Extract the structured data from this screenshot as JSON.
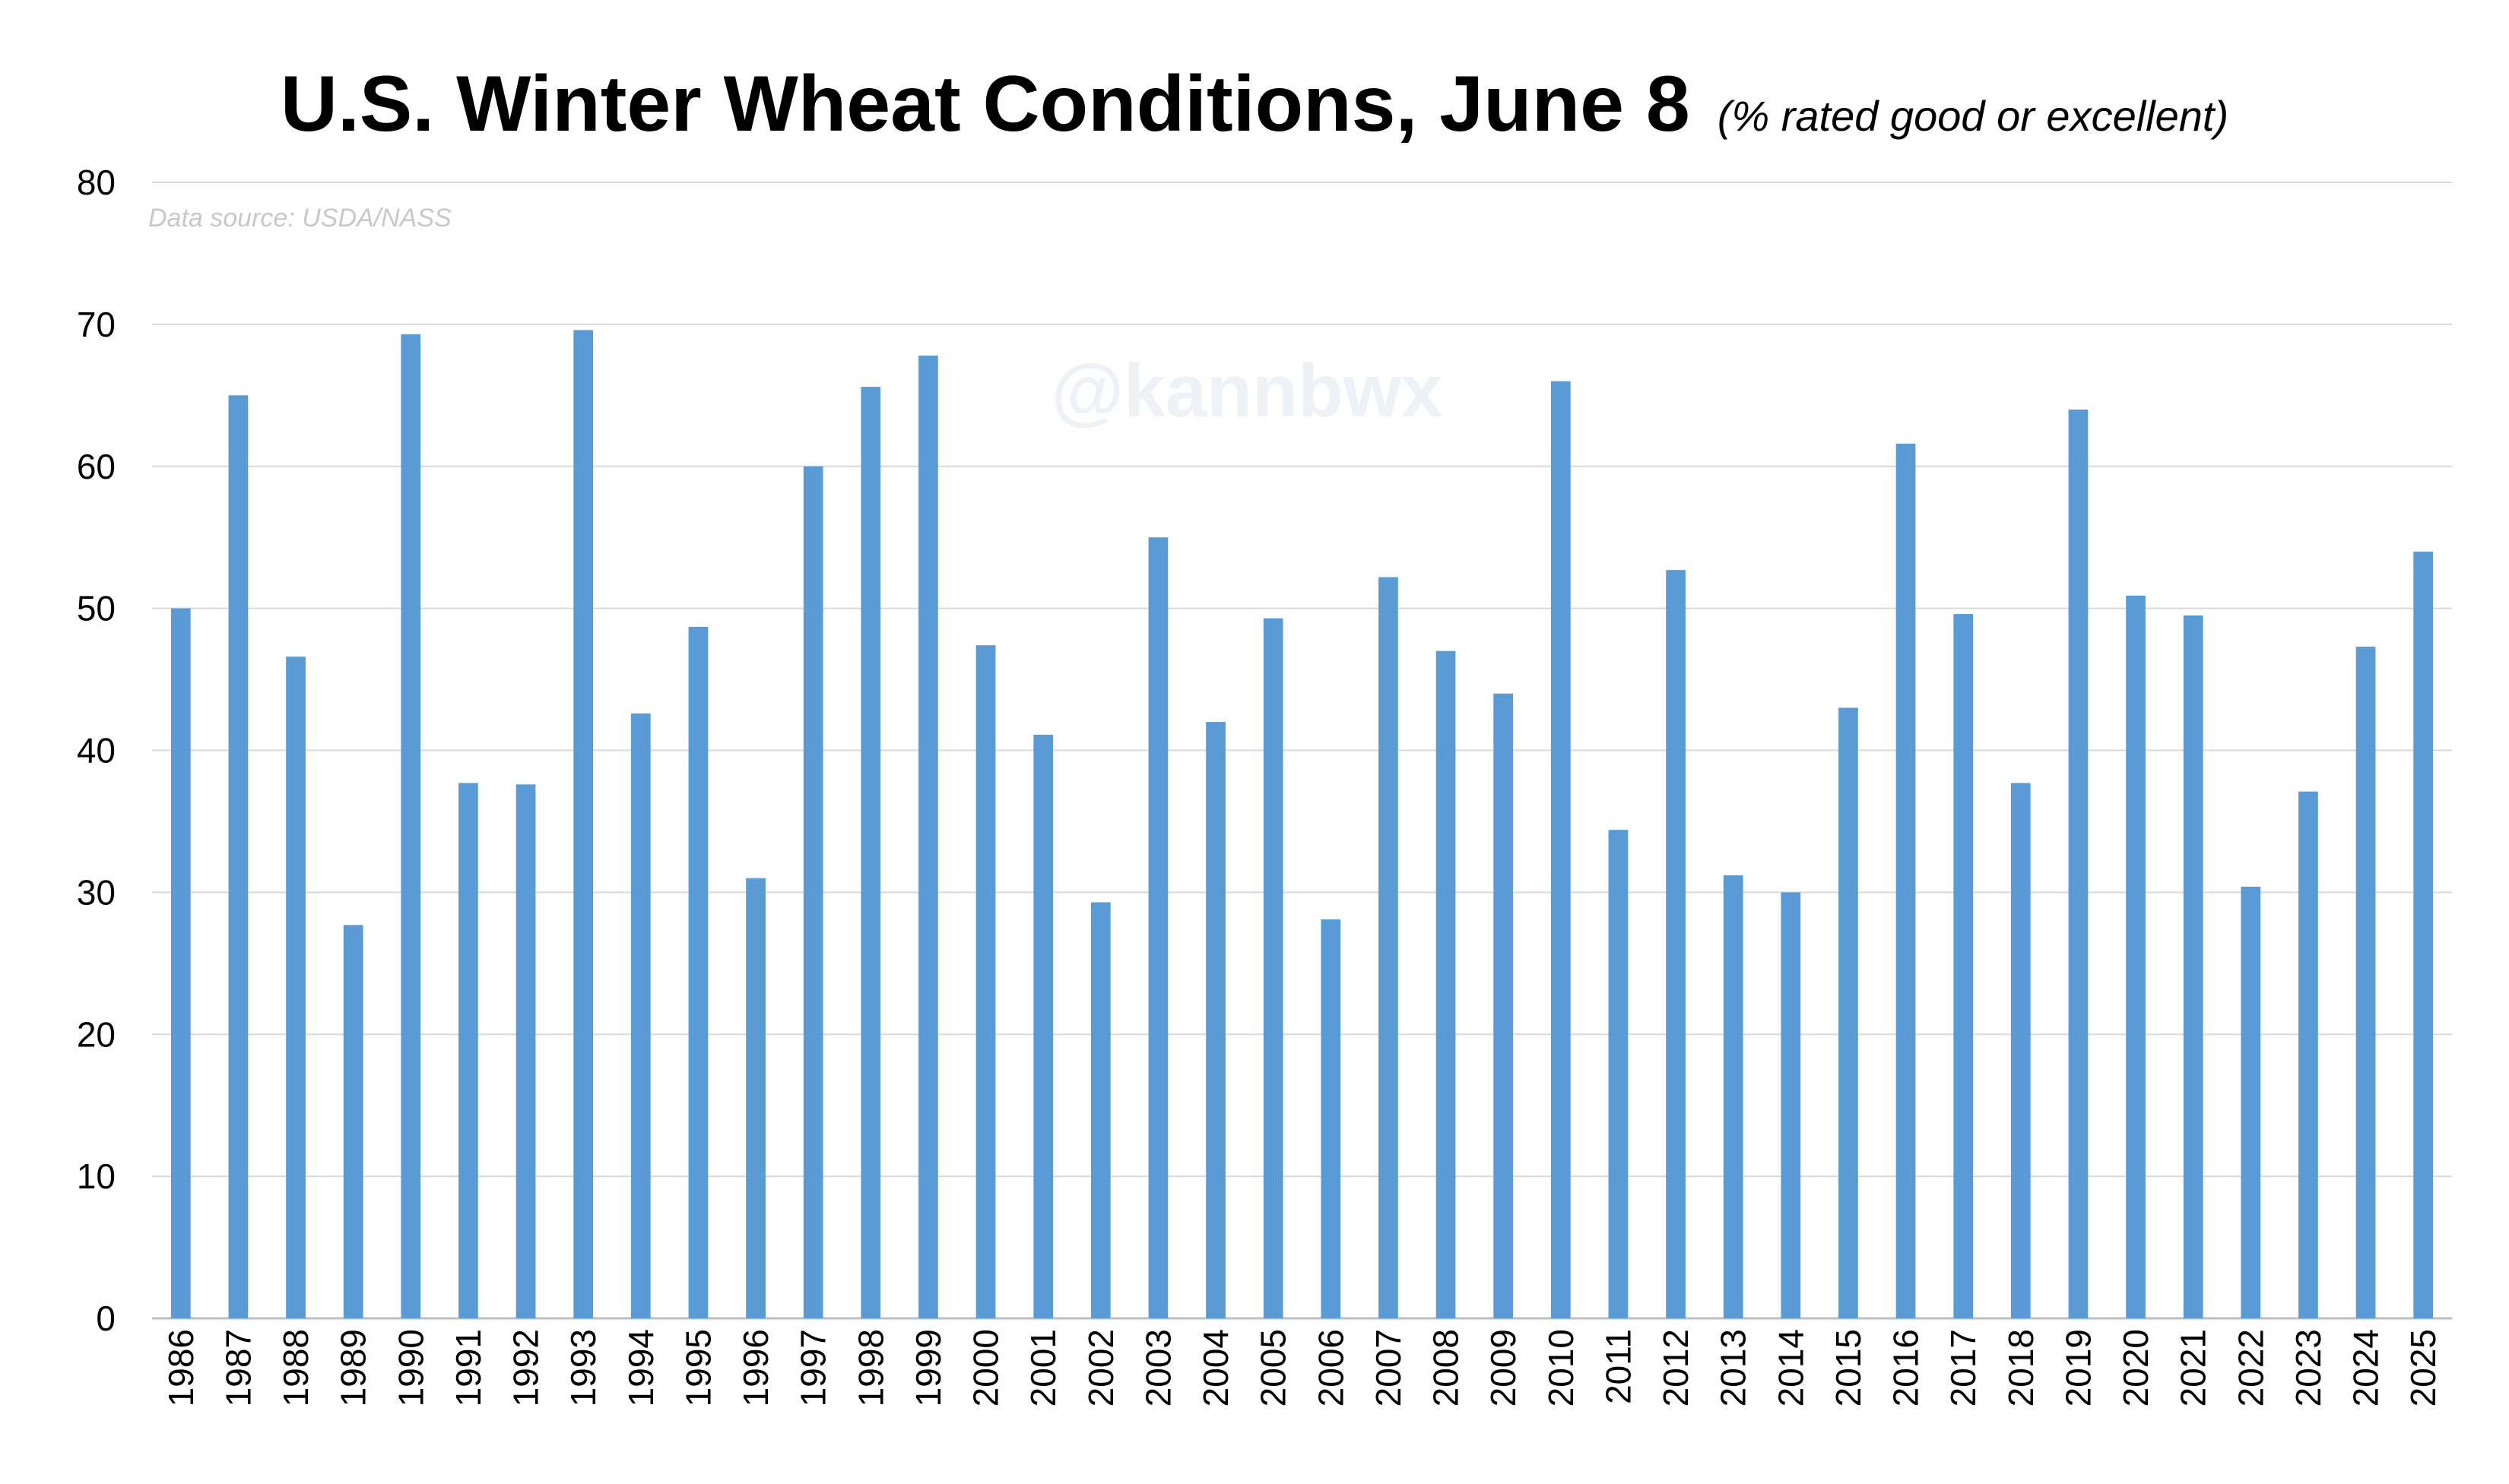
{
  "chart_data": {
    "type": "bar",
    "title": "U.S. Winter Wheat Conditions, June 8",
    "subtitle": "(% rated good or excellent)",
    "source_note": "Data source: USDA/NASS",
    "watermark": "@kannbwx",
    "xlabel": "",
    "ylabel": "",
    "ylim": [
      0,
      80
    ],
    "yticks": [
      0,
      10,
      20,
      30,
      40,
      50,
      60,
      70,
      80
    ],
    "grid": true,
    "legend": "none",
    "bar_color": "#5b9bd5",
    "categories": [
      "1986",
      "1987",
      "1988",
      "1989",
      "1990",
      "1991",
      "1992",
      "1993",
      "1994",
      "1995",
      "1996",
      "1997",
      "1998",
      "1999",
      "2000",
      "2001",
      "2002",
      "2003",
      "2004",
      "2005",
      "2006",
      "2007",
      "2008",
      "2009",
      "2010",
      "2011",
      "2012",
      "2013",
      "2014",
      "2015",
      "2016",
      "2017",
      "2018",
      "2019",
      "2020",
      "2021",
      "2022",
      "2023",
      "2024",
      "2025"
    ],
    "values": [
      50,
      65,
      46.6,
      27.7,
      69.3,
      37.7,
      37.6,
      69.6,
      42.6,
      48.7,
      31,
      60,
      65.6,
      67.8,
      47.4,
      41.1,
      29.3,
      55,
      42,
      49.3,
      28.1,
      52.2,
      47,
      44,
      66,
      34.4,
      52.7,
      31.2,
      30,
      43,
      61.6,
      49.6,
      37.7,
      64,
      50.9,
      49.5,
      30.4,
      37.1,
      47.3,
      54
    ]
  }
}
